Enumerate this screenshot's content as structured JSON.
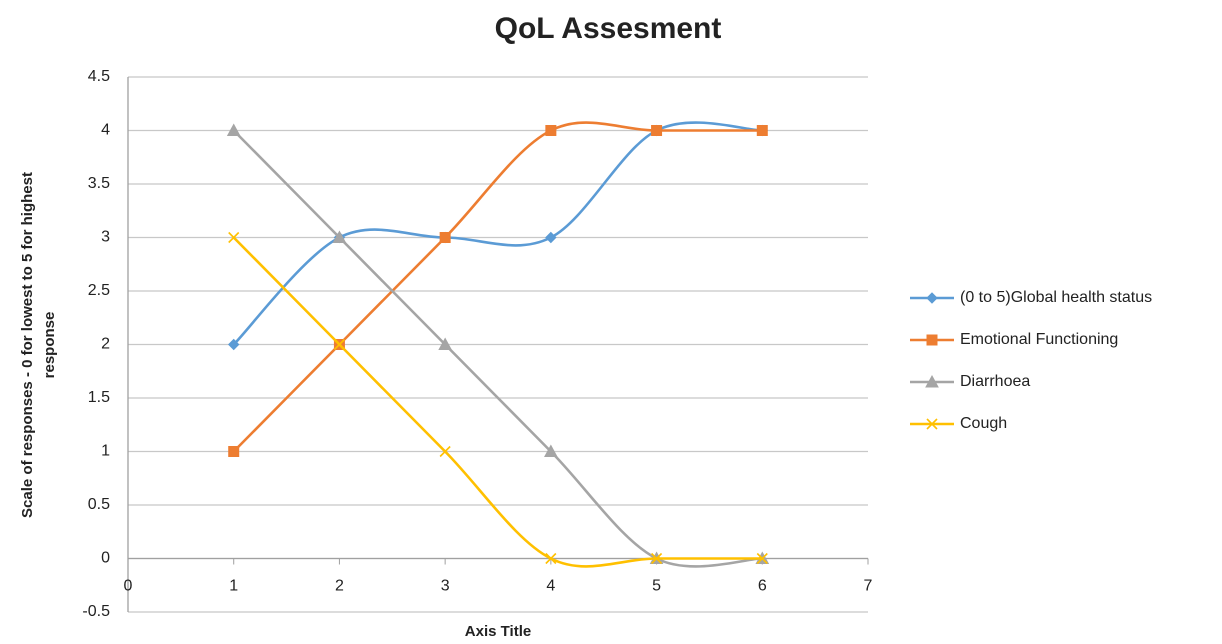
{
  "chart_data": {
    "type": "line",
    "title": "QoL Assesment",
    "xlabel": "Axis Title",
    "ylabel": [
      "Scale of responses - 0 for lowest to 5 for highest",
      "response"
    ],
    "x": [
      1,
      2,
      3,
      4,
      5,
      6
    ],
    "series": [
      {
        "name": "(0 to 5)Global health status",
        "color": "#5b9bd5",
        "marker": "diamond",
        "values": [
          2,
          3,
          3,
          3,
          4,
          4
        ]
      },
      {
        "name": "Emotional Functioning",
        "color": "#ed7d31",
        "marker": "square",
        "values": [
          1,
          2,
          3,
          4,
          4,
          4
        ]
      },
      {
        "name": "Diarrhoea",
        "color": "#a5a5a5",
        "marker": "triangle",
        "values": [
          4,
          3,
          2,
          1,
          0,
          0
        ]
      },
      {
        "name": "Cough",
        "color": "#ffc000",
        "marker": "x",
        "values": [
          3,
          2,
          1,
          0,
          0,
          0
        ]
      }
    ],
    "smooth": true,
    "xlim": [
      0,
      7
    ],
    "xticks": [
      0,
      1,
      2,
      3,
      4,
      5,
      6,
      7
    ],
    "ylim": [
      -0.5,
      4.5
    ],
    "yticks": [
      -0.5,
      0,
      0.5,
      1,
      1.5,
      2,
      2.5,
      3,
      3.5,
      4,
      4.5
    ],
    "grid": true,
    "legend": "right"
  }
}
